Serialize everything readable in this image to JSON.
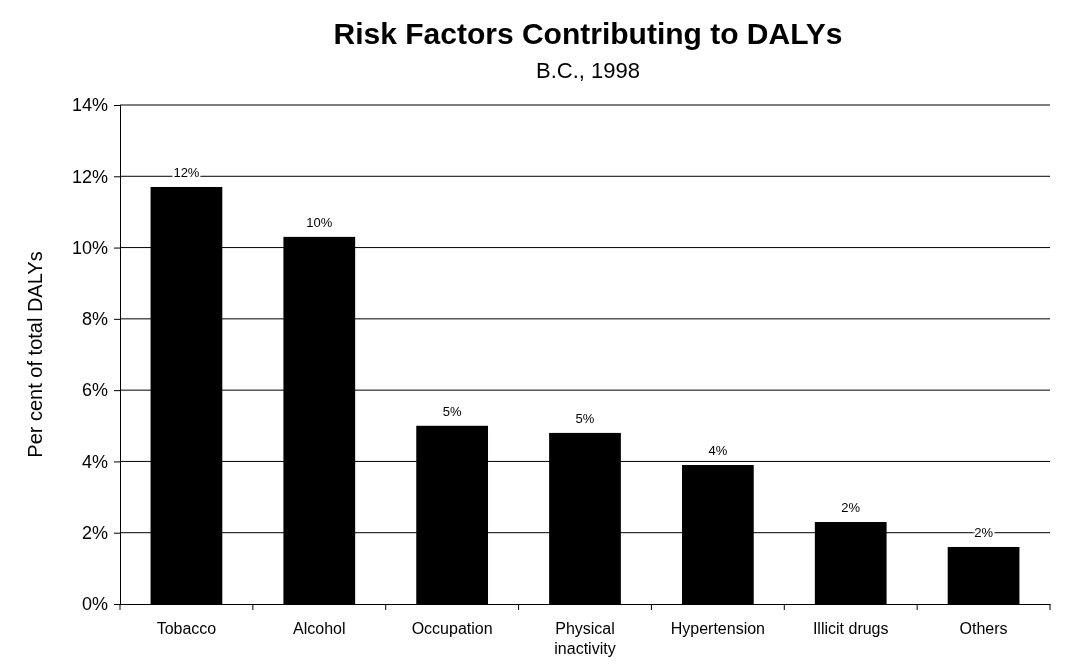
{
  "chart_data": {
    "type": "bar",
    "title": "Risk Factors Contributing to DALYs",
    "subtitle": "B.C., 1998",
    "ylabel": "Per cent of total DALYs",
    "categories": [
      "Tobacco",
      "Alcohol",
      "Occupation",
      "Physical inactivity",
      "Hypertension",
      "Illicit drugs",
      "Others"
    ],
    "values": [
      11.7,
      10.3,
      5.0,
      4.8,
      3.9,
      2.3,
      1.6
    ],
    "value_labels": [
      "12%",
      "10%",
      "5%",
      "5%",
      "4%",
      "2%",
      "2%"
    ],
    "color": "#000000",
    "ylim": [
      0,
      14
    ],
    "yticks": [
      {
        "value": 0,
        "label": "0%"
      },
      {
        "value": 2,
        "label": "2%"
      },
      {
        "value": 4,
        "label": "4%"
      },
      {
        "value": 6,
        "label": "6%"
      },
      {
        "value": 8,
        "label": "8%"
      },
      {
        "value": 10,
        "label": "10%"
      },
      {
        "value": 12,
        "label": "12%"
      },
      {
        "value": 14,
        "label": "14%"
      }
    ],
    "grid": "y"
  }
}
